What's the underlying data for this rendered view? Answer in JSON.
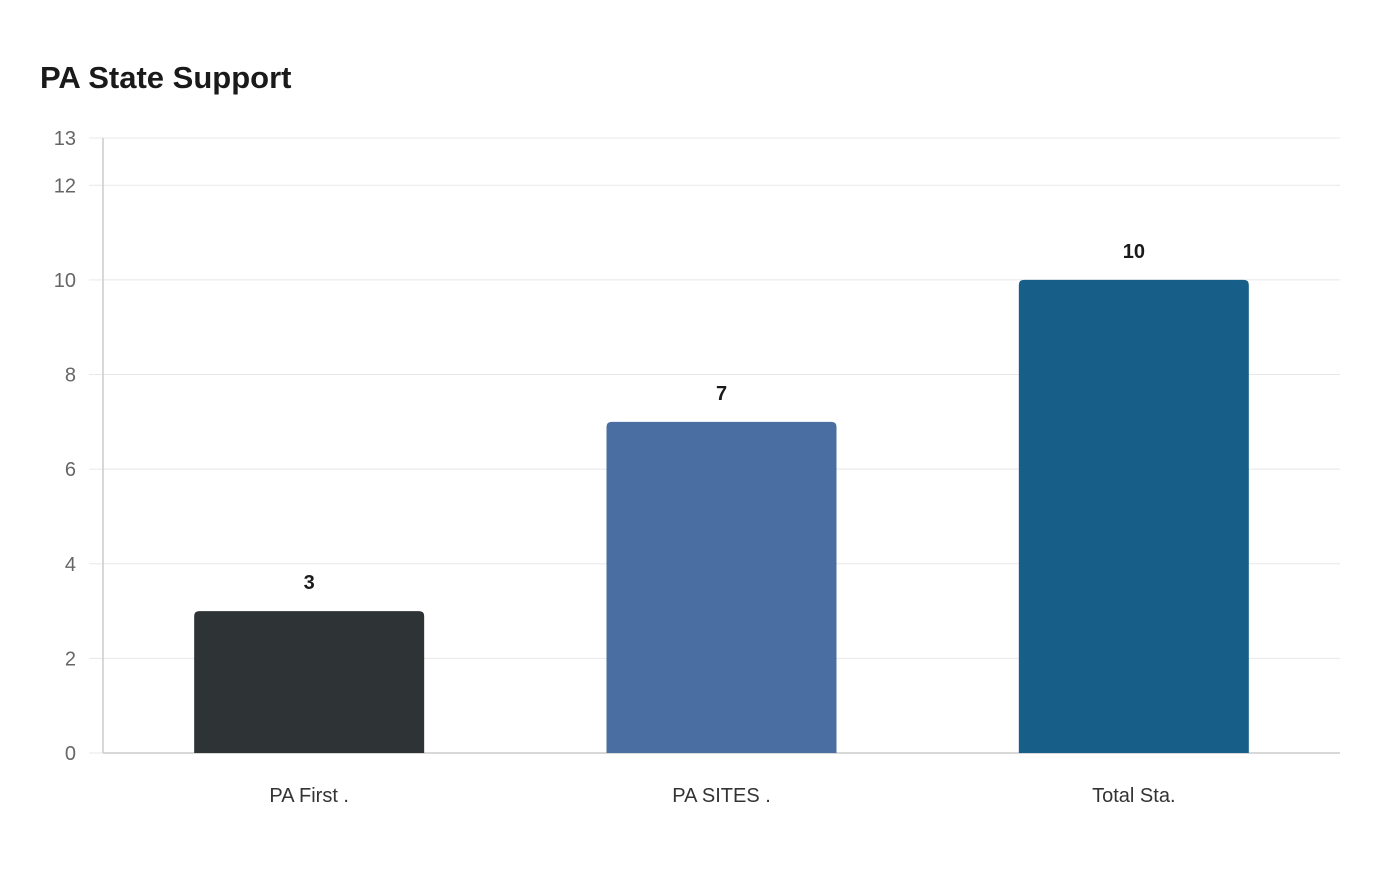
{
  "chart_data": {
    "type": "bar",
    "title": "PA State Support",
    "categories": [
      "PA First .",
      "PA SITES .",
      "Total Sta."
    ],
    "values": [
      3,
      7,
      10
    ],
    "data_labels": [
      "3",
      "7",
      "10"
    ],
    "colors": [
      "#2e3436",
      "#4a6da2",
      "#175f88"
    ],
    "xlabel": "",
    "ylabel": "",
    "ylim": [
      0,
      13
    ],
    "yticks": [
      0,
      2,
      4,
      6,
      8,
      10,
      12,
      13
    ],
    "ytick_labels": [
      "0",
      "2",
      "4",
      "6",
      "8",
      "10",
      "12",
      "13"
    ],
    "grid": true,
    "legend": "none"
  }
}
